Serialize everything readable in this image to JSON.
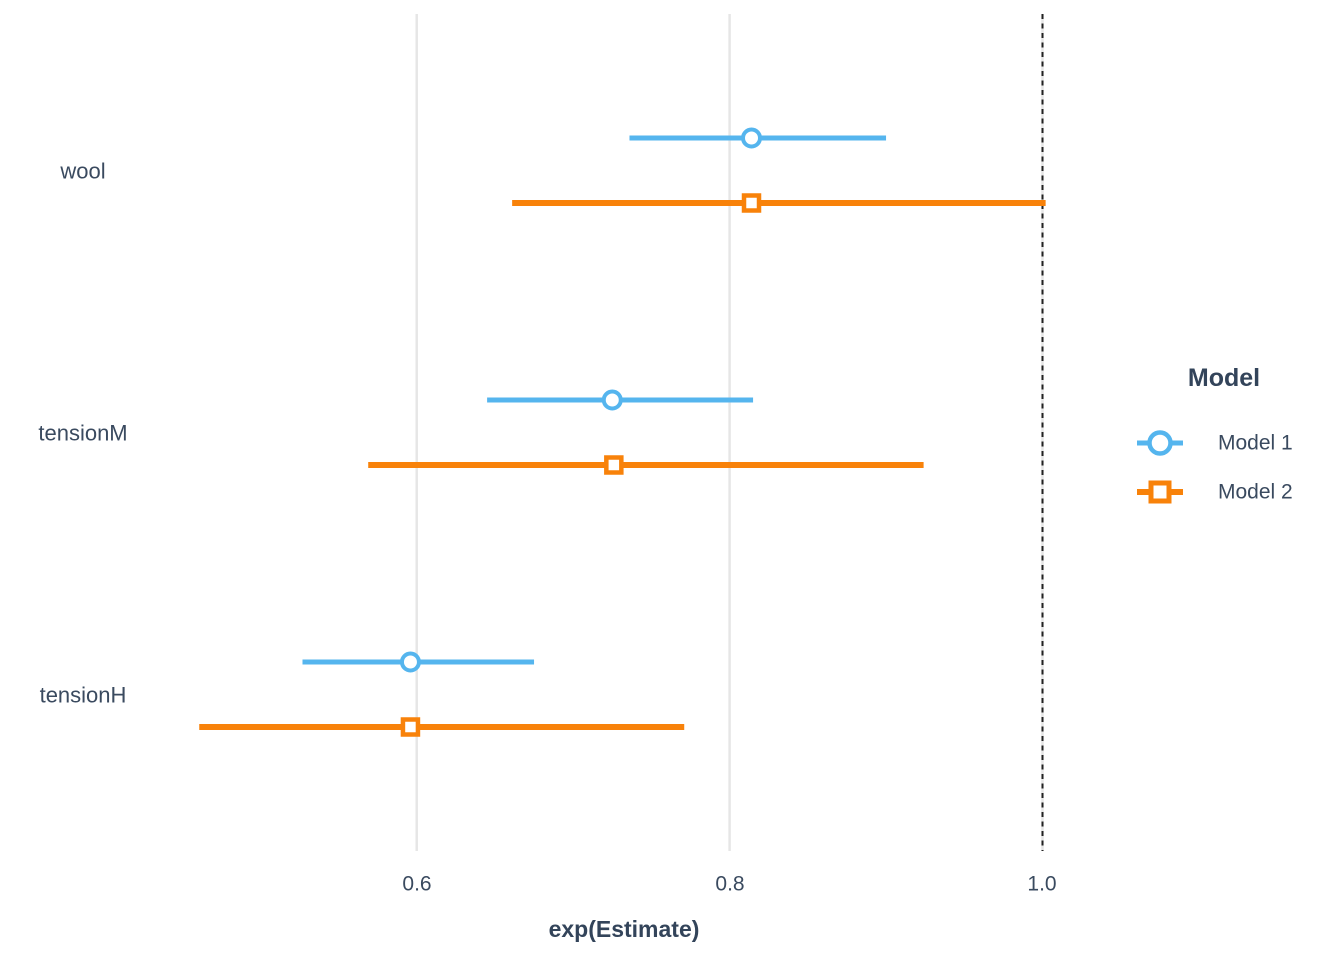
{
  "chart_data": {
    "type": "scatter",
    "subtype": "forest-dot-whisker",
    "title": "",
    "xlabel": "exp(Estimate)",
    "ylabel": "",
    "categories": [
      "wool",
      "tensionM",
      "tensionH"
    ],
    "x_ticks": [
      0.6,
      0.8,
      1.0
    ],
    "x_tick_labels": [
      "0.6",
      "0.8",
      "1.0"
    ],
    "xlim": [
      0.434,
      1.031
    ],
    "grid": {
      "vertical_major": true,
      "horizontal": false,
      "minor": false
    },
    "reference_line": {
      "x": 1.0,
      "style": "dashed"
    },
    "legend": {
      "title": "Model",
      "position": "right",
      "entries": [
        "Model 1",
        "Model 2"
      ]
    },
    "series": [
      {
        "name": "Model 1",
        "marker": "circle",
        "color": "#55b5ee",
        "line_width": 5,
        "points": [
          {
            "term": "wool",
            "estimate": 0.814,
            "conf_low": 0.736,
            "conf_high": 0.9
          },
          {
            "term": "tensionM",
            "estimate": 0.725,
            "conf_low": 0.645,
            "conf_high": 0.815
          },
          {
            "term": "tensionH",
            "estimate": 0.596,
            "conf_low": 0.527,
            "conf_high": 0.675
          }
        ]
      },
      {
        "name": "Model 2",
        "marker": "square",
        "color": "#f8820a",
        "line_width": 6,
        "points": [
          {
            "term": "wool",
            "estimate": 0.814,
            "conf_low": 0.661,
            "conf_high": 1.002
          },
          {
            "term": "tensionM",
            "estimate": 0.726,
            "conf_low": 0.569,
            "conf_high": 0.924
          },
          {
            "term": "tensionH",
            "estimate": 0.596,
            "conf_low": 0.461,
            "conf_high": 0.771
          }
        ]
      }
    ],
    "colors": {
      "model1": "#55b5ee",
      "model2": "#f8820a",
      "text": "#3a4a5f",
      "title_text": "#33445a",
      "gridline": "#e6e6e6",
      "reference_line": "#222222",
      "background": "#ffffff",
      "marker_fill": "#ffffff"
    }
  }
}
